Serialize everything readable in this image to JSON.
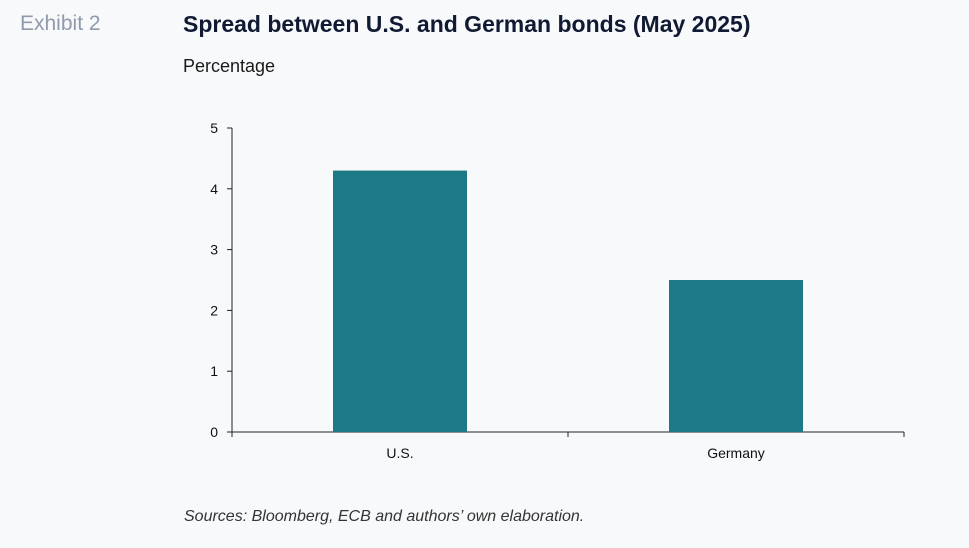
{
  "header": {
    "exhibit": "Exhibit 2",
    "title": "Spread between U.S. and German bonds (May 2025)",
    "subtitle": "Percentage"
  },
  "footer": {
    "source": "Sources: Bloomberg, ECB and authors’ own elaboration."
  },
  "colors": {
    "bar": "#1b7a85",
    "axis": "#222222"
  },
  "chart_data": {
    "type": "bar",
    "title": "Spread between U.S. and German bonds (May 2025)",
    "ylabel": "Percentage",
    "xlabel": "",
    "categories": [
      "U.S.",
      "Germany"
    ],
    "values": [
      4.3,
      2.5
    ],
    "ylim": [
      0,
      5
    ],
    "yticks": [
      0,
      1,
      2,
      3,
      4,
      5
    ],
    "grid": false,
    "legend": "none"
  }
}
